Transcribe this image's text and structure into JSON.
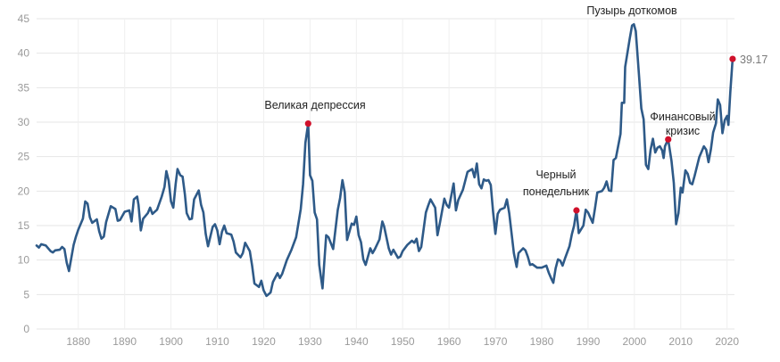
{
  "chart_data": {
    "type": "line",
    "title": "",
    "xlabel": "",
    "ylabel": "",
    "xlim": [
      1871,
      2021.6
    ],
    "ylim": [
      0,
      45
    ],
    "grid": true,
    "colors": {
      "line": "#2e5a88",
      "marker": "#d0112b",
      "grid": "#e6e6e6",
      "tick": "#9a9a9a"
    },
    "y_ticks": [
      "0",
      "5",
      "10",
      "15",
      "20",
      "25",
      "30",
      "35",
      "40",
      "45"
    ],
    "x_ticks": [
      "1880",
      "1890",
      "1900",
      "1910",
      "1920",
      "1930",
      "1940",
      "1950",
      "1960",
      "1970",
      "1980",
      "1990",
      "2000",
      "2010",
      "2020"
    ],
    "series": [
      {
        "points": [
          [
            1871,
            12.1
          ],
          [
            1871.5,
            11.8
          ],
          [
            1872,
            12.3
          ],
          [
            1873,
            12.1
          ],
          [
            1874,
            11.3
          ],
          [
            1874.5,
            11.1
          ],
          [
            1875,
            11.4
          ],
          [
            1876,
            11.5
          ],
          [
            1876.5,
            11.9
          ],
          [
            1877,
            11.6
          ],
          [
            1877.5,
            9.6
          ],
          [
            1878,
            8.4
          ],
          [
            1879,
            12.2
          ],
          [
            1879.5,
            13.4
          ],
          [
            1880,
            14.4
          ],
          [
            1881,
            16.0
          ],
          [
            1881.5,
            18.5
          ],
          [
            1882,
            18.2
          ],
          [
            1882.5,
            16.2
          ],
          [
            1883,
            15.4
          ],
          [
            1884,
            15.9
          ],
          [
            1884.5,
            14.2
          ],
          [
            1885,
            13.1
          ],
          [
            1885.5,
            13.4
          ],
          [
            1886,
            15.5
          ],
          [
            1887,
            17.8
          ],
          [
            1888,
            17.4
          ],
          [
            1888.5,
            15.7
          ],
          [
            1889,
            15.8
          ],
          [
            1890,
            17.0
          ],
          [
            1891,
            17.2
          ],
          [
            1891.5,
            15.6
          ],
          [
            1892,
            18.8
          ],
          [
            1892.7,
            19.2
          ],
          [
            1893,
            18.0
          ],
          [
            1893.5,
            14.3
          ],
          [
            1894,
            16.0
          ],
          [
            1895,
            16.8
          ],
          [
            1895.5,
            17.6
          ],
          [
            1896,
            16.7
          ],
          [
            1897,
            17.3
          ],
          [
            1898,
            19.2
          ],
          [
            1898.6,
            20.6
          ],
          [
            1899,
            22.9
          ],
          [
            1899.5,
            21.5
          ],
          [
            1900,
            18.5
          ],
          [
            1900.5,
            17.6
          ],
          [
            1901,
            21.0
          ],
          [
            1901.4,
            23.2
          ],
          [
            1902,
            22.3
          ],
          [
            1902.5,
            22.1
          ],
          [
            1903,
            19.5
          ],
          [
            1903.4,
            16.8
          ],
          [
            1904,
            15.9
          ],
          [
            1904.5,
            16.0
          ],
          [
            1905,
            18.8
          ],
          [
            1906,
            20.1
          ],
          [
            1906.5,
            18.0
          ],
          [
            1907,
            16.9
          ],
          [
            1907.5,
            13.8
          ],
          [
            1908,
            12.0
          ],
          [
            1909,
            14.8
          ],
          [
            1909.5,
            15.2
          ],
          [
            1910,
            14.3
          ],
          [
            1910.5,
            12.3
          ],
          [
            1911,
            14.1
          ],
          [
            1911.5,
            15.0
          ],
          [
            1912,
            13.9
          ],
          [
            1913,
            13.7
          ],
          [
            1913.5,
            12.7
          ],
          [
            1914,
            11.1
          ],
          [
            1915,
            10.4
          ],
          [
            1915.5,
            11.0
          ],
          [
            1916,
            12.5
          ],
          [
            1917,
            11.3
          ],
          [
            1917.5,
            9.2
          ],
          [
            1918,
            6.6
          ],
          [
            1919,
            6.1
          ],
          [
            1919.5,
            7.0
          ],
          [
            1920,
            5.6
          ],
          [
            1920.6,
            4.8
          ],
          [
            1921,
            5.0
          ],
          [
            1921.5,
            5.3
          ],
          [
            1922,
            6.8
          ],
          [
            1923,
            8.1
          ],
          [
            1923.5,
            7.4
          ],
          [
            1924,
            8.0
          ],
          [
            1925,
            10.0
          ],
          [
            1926,
            11.5
          ],
          [
            1927,
            13.3
          ],
          [
            1928,
            17.4
          ],
          [
            1928.5,
            21.0
          ],
          [
            1929,
            27.0
          ],
          [
            1929.6,
            29.8
          ],
          [
            1930,
            22.3
          ],
          [
            1930.5,
            21.5
          ],
          [
            1931,
            16.9
          ],
          [
            1931.5,
            15.9
          ],
          [
            1932,
            9.3
          ],
          [
            1932.7,
            5.9
          ],
          [
            1933,
            8.8
          ],
          [
            1933.5,
            13.6
          ],
          [
            1934,
            13.3
          ],
          [
            1935,
            11.6
          ],
          [
            1936,
            17.3
          ],
          [
            1936.5,
            19.0
          ],
          [
            1937,
            21.6
          ],
          [
            1937.5,
            19.8
          ],
          [
            1938,
            12.9
          ],
          [
            1939,
            15.3
          ],
          [
            1939.5,
            15.1
          ],
          [
            1940,
            16.3
          ],
          [
            1940.5,
            13.6
          ],
          [
            1941,
            12.6
          ],
          [
            1941.5,
            10.1
          ],
          [
            1942,
            9.3
          ],
          [
            1943,
            11.7
          ],
          [
            1943.5,
            11.0
          ],
          [
            1944,
            11.6
          ],
          [
            1945,
            13.0
          ],
          [
            1945.6,
            15.6
          ],
          [
            1946,
            14.9
          ],
          [
            1947,
            11.7
          ],
          [
            1947.5,
            10.8
          ],
          [
            1948,
            11.5
          ],
          [
            1949,
            10.3
          ],
          [
            1949.5,
            10.5
          ],
          [
            1950,
            11.3
          ],
          [
            1951,
            12.2
          ],
          [
            1952,
            12.8
          ],
          [
            1952.5,
            12.5
          ],
          [
            1953,
            13.1
          ],
          [
            1953.5,
            11.3
          ],
          [
            1954,
            11.9
          ],
          [
            1955,
            16.9
          ],
          [
            1955.5,
            17.9
          ],
          [
            1956,
            18.8
          ],
          [
            1956.5,
            18.2
          ],
          [
            1957,
            17.6
          ],
          [
            1957.5,
            13.6
          ],
          [
            1958,
            15.3
          ],
          [
            1959,
            18.9
          ],
          [
            1959.5,
            18.0
          ],
          [
            1960,
            17.6
          ],
          [
            1961,
            21.1
          ],
          [
            1961.5,
            17.2
          ],
          [
            1962,
            18.7
          ],
          [
            1963,
            20.2
          ],
          [
            1964,
            22.8
          ],
          [
            1965,
            23.2
          ],
          [
            1965.5,
            22.0
          ],
          [
            1966,
            24.0
          ],
          [
            1966.5,
            21.0
          ],
          [
            1967,
            20.4
          ],
          [
            1967.5,
            21.7
          ],
          [
            1968,
            21.5
          ],
          [
            1968.5,
            21.6
          ],
          [
            1969,
            20.9
          ],
          [
            1969.5,
            17.0
          ],
          [
            1970,
            13.8
          ],
          [
            1970.5,
            16.7
          ],
          [
            1971,
            17.3
          ],
          [
            1972,
            17.6
          ],
          [
            1972.5,
            18.8
          ],
          [
            1973,
            16.8
          ],
          [
            1973.5,
            13.9
          ],
          [
            1974,
            11.0
          ],
          [
            1974.6,
            9.0
          ],
          [
            1975,
            11.0
          ],
          [
            1976,
            11.7
          ],
          [
            1976.5,
            11.4
          ],
          [
            1977,
            10.5
          ],
          [
            1977.5,
            9.3
          ],
          [
            1978,
            9.4
          ],
          [
            1979,
            8.9
          ],
          [
            1980,
            8.9
          ],
          [
            1981,
            9.2
          ],
          [
            1981.5,
            8.2
          ],
          [
            1982,
            7.4
          ],
          [
            1982.5,
            6.7
          ],
          [
            1983,
            8.8
          ],
          [
            1983.5,
            10.1
          ],
          [
            1984,
            9.9
          ],
          [
            1984.5,
            9.2
          ],
          [
            1985,
            10.2
          ],
          [
            1986,
            12.0
          ],
          [
            1986.5,
            13.7
          ],
          [
            1987,
            15.0
          ],
          [
            1987.5,
            17.2
          ],
          [
            1988,
            13.9
          ],
          [
            1989,
            15.0
          ],
          [
            1989.5,
            17.3
          ],
          [
            1990,
            16.9
          ],
          [
            1991,
            15.4
          ],
          [
            1991.5,
            17.5
          ],
          [
            1992,
            19.8
          ],
          [
            1993,
            20.0
          ],
          [
            1993.5,
            20.5
          ],
          [
            1994,
            21.4
          ],
          [
            1994.5,
            20.1
          ],
          [
            1995,
            20.0
          ],
          [
            1995.5,
            24.5
          ],
          [
            1996,
            24.8
          ],
          [
            1997,
            28.3
          ],
          [
            1997.3,
            32.8
          ],
          [
            1997.8,
            32.8
          ],
          [
            1998,
            38.0
          ],
          [
            1999,
            42.1
          ],
          [
            1999.5,
            44.0
          ],
          [
            1999.9,
            44.2
          ],
          [
            2000.3,
            43.2
          ],
          [
            2001,
            36.8
          ],
          [
            2001.5,
            32.0
          ],
          [
            2002,
            30.4
          ],
          [
            2002.5,
            23.8
          ],
          [
            2003,
            23.2
          ],
          [
            2003.5,
            26.0
          ],
          [
            2004,
            27.6
          ],
          [
            2004.5,
            25.6
          ],
          [
            2005,
            26.3
          ],
          [
            2005.5,
            26.5
          ],
          [
            2006,
            25.9
          ],
          [
            2006.3,
            24.8
          ],
          [
            2006.6,
            26.5
          ],
          [
            2007.3,
            27.5
          ],
          [
            2008,
            24.4
          ],
          [
            2008.5,
            21.2
          ],
          [
            2009,
            15.2
          ],
          [
            2009.5,
            16.8
          ],
          [
            2010,
            20.5
          ],
          [
            2010.4,
            19.8
          ],
          [
            2011,
            23.0
          ],
          [
            2011.5,
            22.5
          ],
          [
            2012,
            21.2
          ],
          [
            2012.5,
            21.0
          ],
          [
            2013,
            22.2
          ],
          [
            2014,
            24.9
          ],
          [
            2015,
            26.5
          ],
          [
            2015.5,
            26.0
          ],
          [
            2016,
            24.2
          ],
          [
            2016.5,
            26.0
          ],
          [
            2017,
            28.5
          ],
          [
            2017.6,
            29.8
          ],
          [
            2018,
            33.3
          ],
          [
            2018.5,
            32.5
          ],
          [
            2019,
            28.4
          ],
          [
            2019.5,
            30.3
          ],
          [
            2020,
            30.9
          ],
          [
            2020.3,
            29.6
          ],
          [
            2020.7,
            34.3
          ],
          [
            2021.2,
            39.17
          ]
        ]
      }
    ],
    "highlights": [
      {
        "x": 1929.6,
        "y": 29.8,
        "label_lines": [
          "Великая депрессия"
        ]
      },
      {
        "x": 1987.5,
        "y": 17.2,
        "label_lines": [
          "Черный",
          "понедельник"
        ]
      },
      {
        "x": 2007.3,
        "y": 27.5,
        "label_lines": [
          "Финансовый",
          "кризис"
        ]
      },
      {
        "x": 1999.9,
        "y": 44.2,
        "label_lines": [
          "Пузырь доткомов"
        ]
      },
      {
        "x": 2021.2,
        "y": 39.17,
        "label_lines": [
          "39.17"
        ]
      }
    ]
  }
}
